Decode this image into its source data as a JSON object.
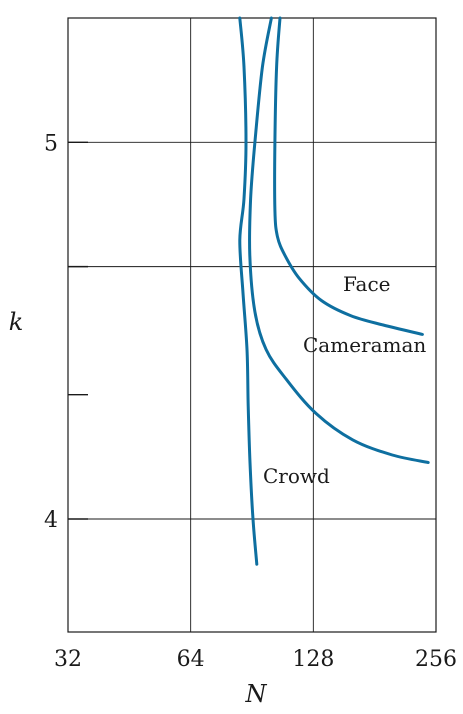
{
  "chart_data": {
    "type": "line",
    "xlabel": "N",
    "ylabel": "k",
    "x_scale": "log2",
    "xlim": [
      32,
      256
    ],
    "ylim": [
      3.7,
      5.33
    ],
    "x_ticks": [
      32,
      64,
      128,
      256
    ],
    "x_tick_labels": [
      "32",
      "64",
      "128",
      "256"
    ],
    "y_ticks": [
      4.0,
      4.33,
      4.67,
      5.0
    ],
    "y_tick_labels": [
      "4",
      "",
      "",
      "5"
    ],
    "grid": true,
    "line_color": "#0e6fa0",
    "series": [
      {
        "name": "Face",
        "label_position": "right",
        "points": [
          [
            106,
            5.33
          ],
          [
            104,
            5.2
          ],
          [
            103,
            5.0
          ],
          [
            103,
            4.82
          ],
          [
            104.5,
            4.75
          ],
          [
            109,
            4.7
          ],
          [
            118,
            4.64
          ],
          [
            134,
            4.58
          ],
          [
            158,
            4.54
          ],
          [
            190,
            4.515
          ],
          [
            237,
            4.49
          ]
        ]
      },
      {
        "name": "Cameraman",
        "label_position": "right",
        "points": [
          [
            101,
            5.33
          ],
          [
            96,
            5.2
          ],
          [
            92,
            5.0
          ],
          [
            89.8,
            4.85
          ],
          [
            89.4,
            4.7
          ],
          [
            92,
            4.55
          ],
          [
            98,
            4.45
          ],
          [
            110,
            4.37
          ],
          [
            130,
            4.28
          ],
          [
            160,
            4.21
          ],
          [
            200,
            4.17
          ],
          [
            245,
            4.15
          ]
        ]
      },
      {
        "name": "Crowd",
        "label_position": "right",
        "points": [
          [
            84.5,
            5.33
          ],
          [
            86.5,
            5.2
          ],
          [
            87.5,
            5.0
          ],
          [
            86.5,
            4.85
          ],
          [
            84.5,
            4.74
          ],
          [
            86,
            4.6
          ],
          [
            88,
            4.45
          ],
          [
            88.6,
            4.3
          ],
          [
            89.5,
            4.15
          ],
          [
            91,
            4.0
          ],
          [
            93,
            3.88
          ]
        ]
      }
    ]
  }
}
